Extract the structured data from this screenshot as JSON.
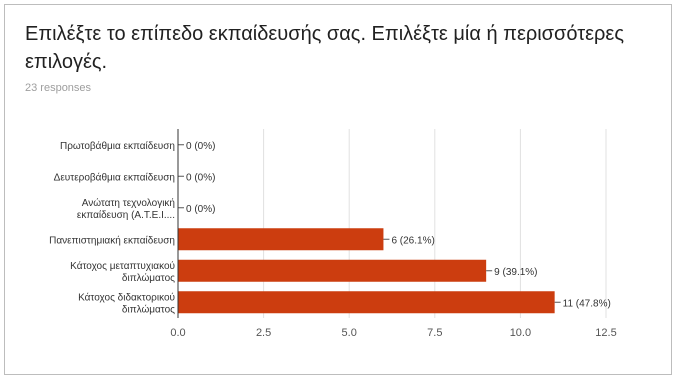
{
  "header": {
    "title": "Επιλέξτε το επίπεδο εκπαίδευσής σας. Επιλέξτε μία ή περισσότερες επιλογές.",
    "responses": "23 responses"
  },
  "chart_data": {
    "type": "bar",
    "orientation": "horizontal",
    "categories": [
      [
        "Πρωτοβάθμια εκπαίδευση"
      ],
      [
        "Δευτεροβάθμια εκπαίδευση"
      ],
      [
        "Ανώτατη τεχνολογική",
        "εκπαίδευση (Α.Τ.Ε.Ι...."
      ],
      [
        "Πανεπιστημιακή εκπαίδευση"
      ],
      [
        "Κάτοχος μεταπτυχιακού",
        "διπλώματος"
      ],
      [
        "Κάτοχος διδακτορικού",
        "διπλώματος"
      ]
    ],
    "values": [
      0,
      0,
      0,
      6,
      9,
      11
    ],
    "data_labels": [
      "0 (0%)",
      "0 (0%)",
      "0 (0%)",
      "6 (26.1%)",
      "9 (39.1%)",
      "11 (47.8%)"
    ],
    "xlim": [
      0,
      12.5
    ],
    "xticks": [
      "0.0",
      "2.5",
      "5.0",
      "7.5",
      "10.0",
      "12.5"
    ],
    "xtick_values": [
      0,
      2.5,
      5,
      7.5,
      10,
      12.5
    ],
    "bar_color": "#cc3d0f",
    "grid": true
  }
}
